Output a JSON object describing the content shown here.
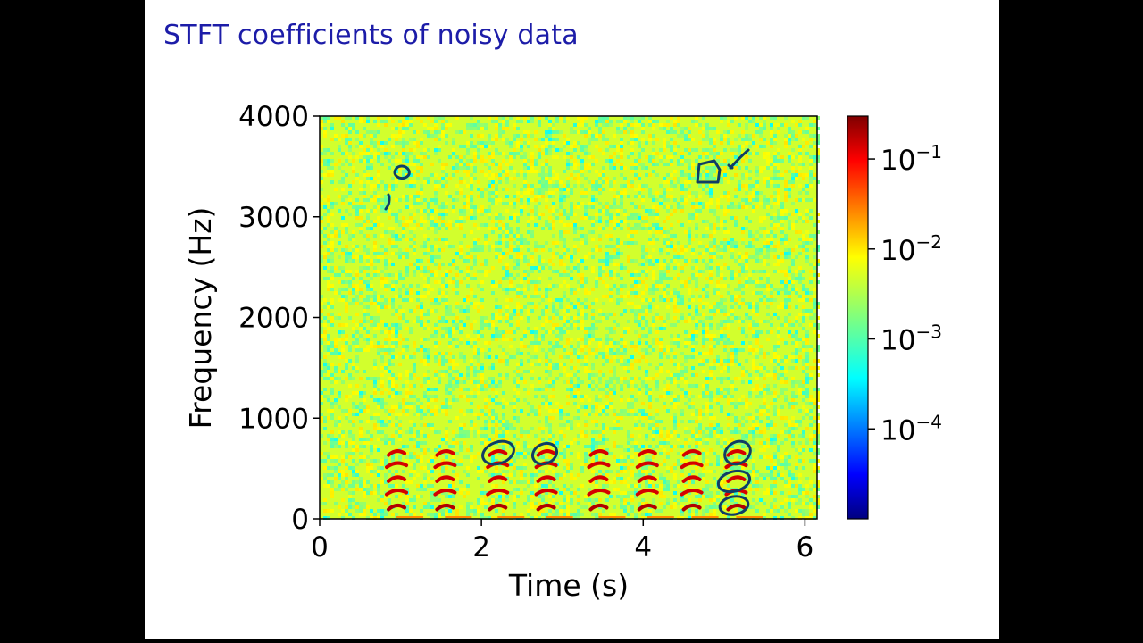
{
  "slide": {
    "title": "STFT coefficients of noisy data"
  },
  "chart_data": {
    "type": "heatmap",
    "title": "",
    "xlabel": "Time (s)",
    "ylabel": "Frequency (Hz)",
    "xlim": [
      0,
      6.15
    ],
    "ylim": [
      0,
      4000
    ],
    "x_ticks": [
      0,
      2,
      4,
      6
    ],
    "y_ticks": [
      0,
      1000,
      2000,
      3000,
      4000
    ],
    "colormap": "jet",
    "colorbar": {
      "scale": "log",
      "range": [
        1e-05,
        0.3
      ],
      "ticks": [
        {
          "mantissa": "10",
          "exponent": "−1",
          "value": 0.1
        },
        {
          "mantissa": "10",
          "exponent": "−2",
          "value": 0.01
        },
        {
          "mantissa": "10",
          "exponent": "−3",
          "value": 0.001
        },
        {
          "mantissa": "10",
          "exponent": "−4",
          "value": 0.0001
        }
      ]
    },
    "background_level": 0.004,
    "harmonic_bursts": [
      {
        "t": 0.95,
        "harmonics_hz": [
          120,
          270,
          400,
          540,
          660
        ]
      },
      {
        "t": 1.55,
        "harmonics_hz": [
          120,
          270,
          400,
          540,
          660
        ]
      },
      {
        "t": 2.2,
        "harmonics_hz": [
          120,
          270,
          400,
          540,
          660
        ]
      },
      {
        "t": 2.8,
        "harmonics_hz": [
          120,
          270,
          400,
          540,
          660
        ]
      },
      {
        "t": 3.45,
        "harmonics_hz": [
          120,
          270,
          400,
          540,
          660
        ]
      },
      {
        "t": 4.05,
        "harmonics_hz": [
          120,
          270,
          400,
          540,
          660
        ]
      },
      {
        "t": 4.6,
        "harmonics_hz": [
          120,
          270,
          400,
          540,
          660
        ]
      },
      {
        "t": 5.15,
        "harmonics_hz": [
          120,
          270,
          400,
          540,
          660
        ]
      }
    ]
  }
}
